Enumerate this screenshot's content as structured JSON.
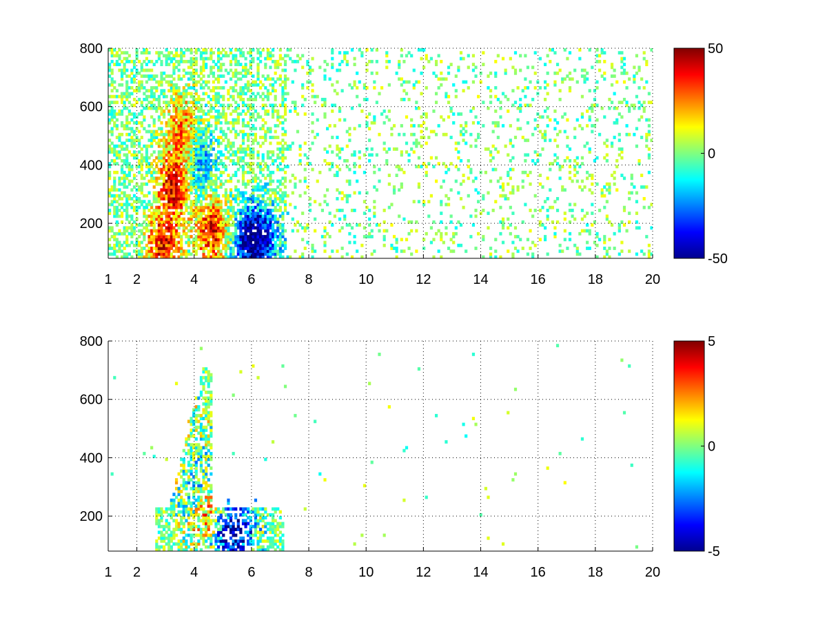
{
  "chart_data": [
    {
      "type": "heatmap",
      "title": "",
      "xlabel": "",
      "ylabel": "",
      "xlim": [
        1,
        20
      ],
      "ylim": [
        80,
        800
      ],
      "grid": true,
      "x_ticks": [
        1,
        2,
        4,
        6,
        8,
        10,
        12,
        14,
        16,
        18,
        20
      ],
      "y_ticks": [
        200,
        400,
        600,
        800
      ],
      "colorbar": {
        "min": -50,
        "max": 50,
        "ticks": [
          50,
          0,
          -50
        ],
        "colormap": "jet"
      },
      "features": [
        {
          "x": 3.3,
          "y": 330,
          "value": 40
        },
        {
          "x": 3.6,
          "y": 520,
          "value": 25
        },
        {
          "x": 4.2,
          "y": 400,
          "value": -22
        },
        {
          "x": 4.6,
          "y": 175,
          "value": 38
        },
        {
          "x": 2.9,
          "y": 125,
          "value": 36
        },
        {
          "x": 5.9,
          "y": 145,
          "value": -44
        },
        {
          "x": 6.5,
          "y": 150,
          "value": -30
        }
      ]
    },
    {
      "type": "heatmap",
      "title": "",
      "xlabel": "",
      "ylabel": "",
      "xlim": [
        1,
        20
      ],
      "ylim": [
        80,
        800
      ],
      "grid": true,
      "x_ticks": [
        1,
        2,
        4,
        6,
        8,
        10,
        12,
        14,
        16,
        18,
        20
      ],
      "y_ticks": [
        200,
        400,
        600,
        800
      ],
      "colorbar": {
        "min": -5,
        "max": 5,
        "ticks": [
          5,
          0,
          -5
        ],
        "colormap": "jet"
      },
      "features": [
        {
          "x": 4.6,
          "y": 190,
          "value": 4.5
        },
        {
          "x": 4.9,
          "y": 150,
          "value": -4.5
        },
        {
          "x": 5.6,
          "y": 145,
          "value": -3.5
        },
        {
          "x": 3.6,
          "y": 450,
          "value": 0.5
        },
        {
          "x": 4.2,
          "y": 300,
          "value": -1.5
        }
      ]
    }
  ]
}
